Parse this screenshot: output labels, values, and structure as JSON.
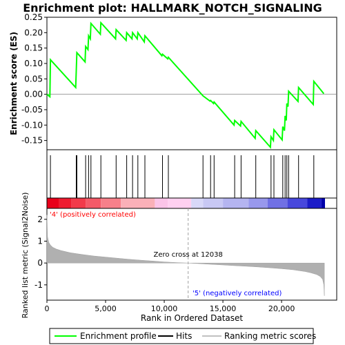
{
  "chart_data": {
    "type": "line",
    "title": "Enrichment plot: HALLMARK_NOTCH_SIGNALING",
    "top_panel": {
      "ylabel": "Enrichment score (ES)",
      "ylim": [
        -0.18,
        0.25
      ],
      "yticks": [
        -0.15,
        -0.1,
        -0.05,
        0.0,
        0.05,
        0.1,
        0.15,
        0.2,
        0.25
      ],
      "ytick_labels": [
        "-0.15",
        "-0.10",
        "-0.05",
        "0.00",
        "0.05",
        "0.10",
        "0.15",
        "0.20",
        "0.25"
      ],
      "series": [
        {
          "name": "Enrichment profile",
          "color": "#00ff00",
          "x": [
            0,
            250,
            300,
            2450,
            2500,
            2550,
            3250,
            3300,
            3500,
            3550,
            3700,
            3750,
            4550,
            4600,
            5850,
            5900,
            6750,
            6800,
            7250,
            7300,
            7700,
            7750,
            8300,
            8350,
            9800,
            9850,
            10300,
            10350,
            13300,
            13900,
            13950,
            14200,
            14250,
            15950,
            16000,
            16500,
            16550,
            17750,
            17800,
            19050,
            19100,
            19300,
            19350,
            20050,
            20100,
            20250,
            20300,
            20400,
            20450,
            20550,
            20600,
            21400,
            21450,
            22700,
            22750,
            23600
          ],
          "y": [
            0.0,
            -0.008,
            0.112,
            0.022,
            0.075,
            0.135,
            0.105,
            0.155,
            0.145,
            0.19,
            0.18,
            0.23,
            0.195,
            0.232,
            0.18,
            0.21,
            0.175,
            0.2,
            0.18,
            0.2,
            0.18,
            0.2,
            0.17,
            0.19,
            0.125,
            0.13,
            0.115,
            0.12,
            -0.005,
            -0.022,
            -0.02,
            -0.03,
            -0.025,
            -0.1,
            -0.085,
            -0.103,
            -0.088,
            -0.143,
            -0.118,
            -0.172,
            -0.138,
            -0.15,
            -0.115,
            -0.148,
            -0.105,
            -0.118,
            -0.07,
            -0.085,
            -0.03,
            -0.04,
            0.01,
            -0.023,
            0.022,
            -0.033,
            0.042,
            0.002
          ]
        }
      ],
      "hits_label": "Hits",
      "hits_x": [
        300,
        2500,
        2550,
        3300,
        3550,
        3750,
        4600,
        5900,
        6800,
        7300,
        7750,
        8350,
        9850,
        10350,
        13300,
        13950,
        14250,
        16000,
        16550,
        17800,
        19100,
        19350,
        20100,
        20300,
        20450,
        20600,
        21450,
        22750
      ]
    },
    "bottom_panel": {
      "ylabel": "Ranked list metric (Signal2Noise)",
      "xlabel": "Rank in Ordered Dataset",
      "ylim": [
        -1.7,
        2.5
      ],
      "yticks": [
        -1,
        0,
        1,
        2
      ],
      "ytick_labels": [
        "-1",
        "0",
        "1",
        "2"
      ],
      "xlim": [
        0,
        24700
      ],
      "xticks": [
        0,
        5000,
        10000,
        15000,
        20000
      ],
      "xtick_labels": [
        "0",
        "5,000",
        "10,000",
        "15,000",
        "20,000"
      ],
      "series": [
        {
          "name": "Ranking metric scores",
          "color": "#c0c0c0",
          "x": [
            0,
            50,
            150,
            300,
            500,
            800,
            1200,
            2000,
            3000,
            4000,
            5000,
            6000,
            7000,
            8000,
            9000,
            10000,
            11000,
            12038,
            13000,
            14000,
            15000,
            16000,
            17000,
            18000,
            19000,
            20000,
            21000,
            21500,
            22000,
            22500,
            23000,
            23300,
            23500,
            23600,
            23650
          ],
          "y": [
            2.2,
            1.2,
            0.95,
            0.82,
            0.72,
            0.64,
            0.57,
            0.47,
            0.39,
            0.32,
            0.27,
            0.22,
            0.17,
            0.13,
            0.09,
            0.05,
            0.02,
            0.0,
            -0.03,
            -0.06,
            -0.09,
            -0.12,
            -0.15,
            -0.18,
            -0.22,
            -0.26,
            -0.31,
            -0.35,
            -0.39,
            -0.45,
            -0.53,
            -0.62,
            -0.75,
            -1.0,
            -1.5
          ]
        }
      ],
      "zero_cross_label": "Zero cross at 12038",
      "zero_cross_x": 12038,
      "pos_label": "'4' (positively correlated)",
      "neg_label": "'5' (negatively correlated)",
      "pos_color": "#ff0000",
      "neg_color": "#0000ff"
    },
    "heat_strip": {
      "colors": [
        "#e8001a",
        "#ee1c30",
        "#f23a4a",
        "#f45a68",
        "#f7808a",
        "#fab0b8",
        "#fbc4e8",
        "#ffd0f0",
        "#d8d8f8",
        "#c8c8f4",
        "#b4b4f0",
        "#9898ec",
        "#7070e4",
        "#4848dc",
        "#1c1cc8",
        "#0000aa"
      ],
      "breaks": [
        0,
        1000,
        2100,
        3300,
        4600,
        6300,
        9200,
        10300,
        12300,
        13300,
        15000,
        17200,
        18800,
        20500,
        22200,
        23400,
        23700
      ]
    },
    "legend": {
      "items": [
        {
          "label": "Enrichment profile",
          "color": "#00ff00"
        },
        {
          "label": "Hits",
          "color": "#000000"
        },
        {
          "label": "Ranking metric scores",
          "color": "#c0c0c0"
        }
      ]
    }
  }
}
